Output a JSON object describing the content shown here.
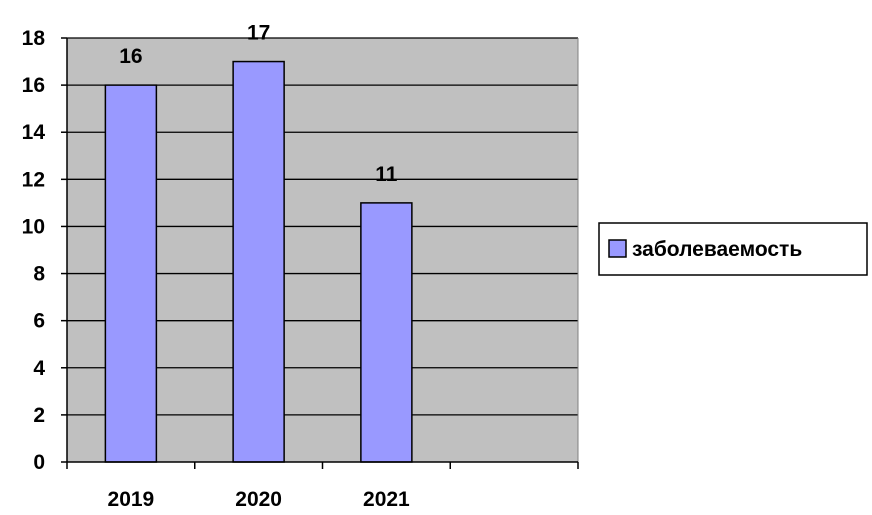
{
  "chart_data": {
    "type": "bar",
    "categories": [
      "2019",
      "2020",
      "2021",
      ""
    ],
    "series": [
      {
        "name": "заболеваемость",
        "values": [
          16,
          17,
          11,
          null
        ]
      }
    ],
    "data_labels": [
      "16",
      "17",
      "11",
      ""
    ],
    "ylim": [
      0,
      18
    ],
    "yticks": [
      "0",
      "2",
      "4",
      "6",
      "8",
      "10",
      "12",
      "14",
      "16",
      "18"
    ],
    "grid": true,
    "legend_position": "right",
    "colors": {
      "plot_background": "#C0C0C0",
      "bar_fill": "#9999FF",
      "bar_stroke": "#000000",
      "gridline": "#000000"
    }
  }
}
